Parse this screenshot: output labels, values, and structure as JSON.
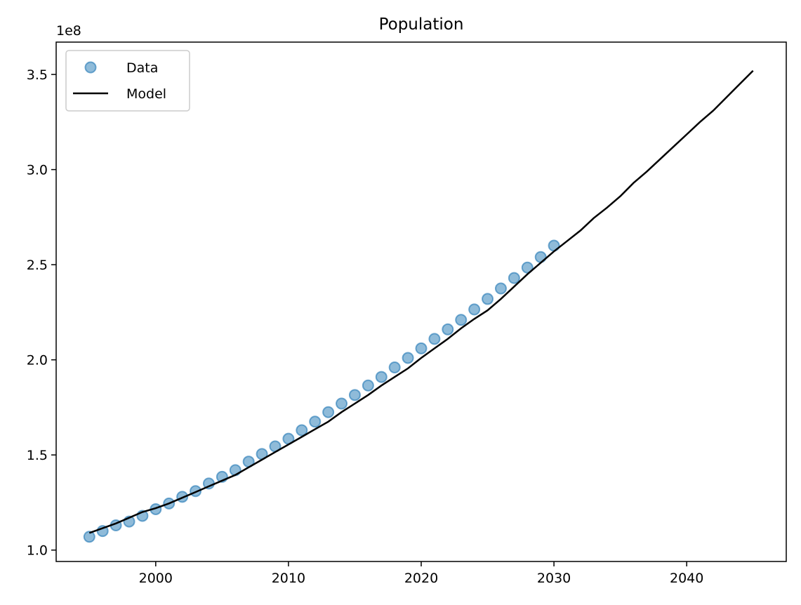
{
  "chart_data": {
    "type": "scatter",
    "title": "Population",
    "xlabel": "",
    "ylabel": "",
    "y_offset_label": "1e8",
    "xlim": [
      1992.5,
      2047.5
    ],
    "ylim": [
      0.94,
      3.67
    ],
    "x_ticks": [
      2000,
      2010,
      2020,
      2030,
      2040
    ],
    "x_tick_labels": [
      "2000",
      "2010",
      "2020",
      "2030",
      "2040"
    ],
    "y_ticks": [
      1.0,
      1.5,
      2.0,
      2.5,
      3.0,
      3.5
    ],
    "y_tick_labels": [
      "1.0",
      "1.5",
      "2.0",
      "2.5",
      "3.0",
      "3.5"
    ],
    "legend_position": "upper-left",
    "grid": false,
    "series": [
      {
        "name": "Data",
        "kind": "scatter",
        "color": "#1f77b4",
        "x": [
          1995,
          1996,
          1997,
          1998,
          1999,
          2000,
          2001,
          2002,
          2003,
          2004,
          2005,
          2006,
          2007,
          2008,
          2009,
          2010,
          2011,
          2012,
          2013,
          2014,
          2015,
          2016,
          2017,
          2018,
          2019,
          2020,
          2021,
          2022,
          2023,
          2024,
          2025,
          2026,
          2027,
          2028,
          2029,
          2030
        ],
        "values": [
          1.07,
          1.1,
          1.13,
          1.15,
          1.18,
          1.215,
          1.245,
          1.28,
          1.31,
          1.35,
          1.385,
          1.42,
          1.465,
          1.505,
          1.545,
          1.585,
          1.63,
          1.675,
          1.725,
          1.77,
          1.815,
          1.865,
          1.91,
          1.96,
          2.01,
          2.06,
          2.11,
          2.16,
          2.21,
          2.265,
          2.32,
          2.375,
          2.43,
          2.485,
          2.54,
          2.6
        ]
      },
      {
        "name": "Model",
        "kind": "line",
        "color": "#000000",
        "x": [
          1995,
          1996,
          1997,
          1998,
          1999,
          2000,
          2001,
          2002,
          2003,
          2004,
          2005,
          2006,
          2007,
          2008,
          2009,
          2010,
          2011,
          2012,
          2013,
          2014,
          2015,
          2016,
          2017,
          2018,
          2019,
          2020,
          2021,
          2022,
          2023,
          2024,
          2025,
          2026,
          2027,
          2028,
          2029,
          2030,
          2031,
          2032,
          2033,
          2034,
          2035,
          2036,
          2037,
          2038,
          2039,
          2040,
          2041,
          2042,
          2043,
          2044,
          2045
        ],
        "values": [
          1.09,
          1.115,
          1.14,
          1.17,
          1.2,
          1.22,
          1.245,
          1.275,
          1.305,
          1.335,
          1.365,
          1.395,
          1.435,
          1.475,
          1.515,
          1.555,
          1.595,
          1.635,
          1.675,
          1.725,
          1.77,
          1.815,
          1.865,
          1.91,
          1.955,
          2.01,
          2.06,
          2.11,
          2.165,
          2.215,
          2.26,
          2.32,
          2.385,
          2.45,
          2.51,
          2.57,
          2.625,
          2.68,
          2.745,
          2.8,
          2.86,
          2.93,
          2.99,
          3.055,
          3.12,
          3.185,
          3.25,
          3.31,
          3.38,
          3.45,
          3.52
        ]
      }
    ]
  }
}
